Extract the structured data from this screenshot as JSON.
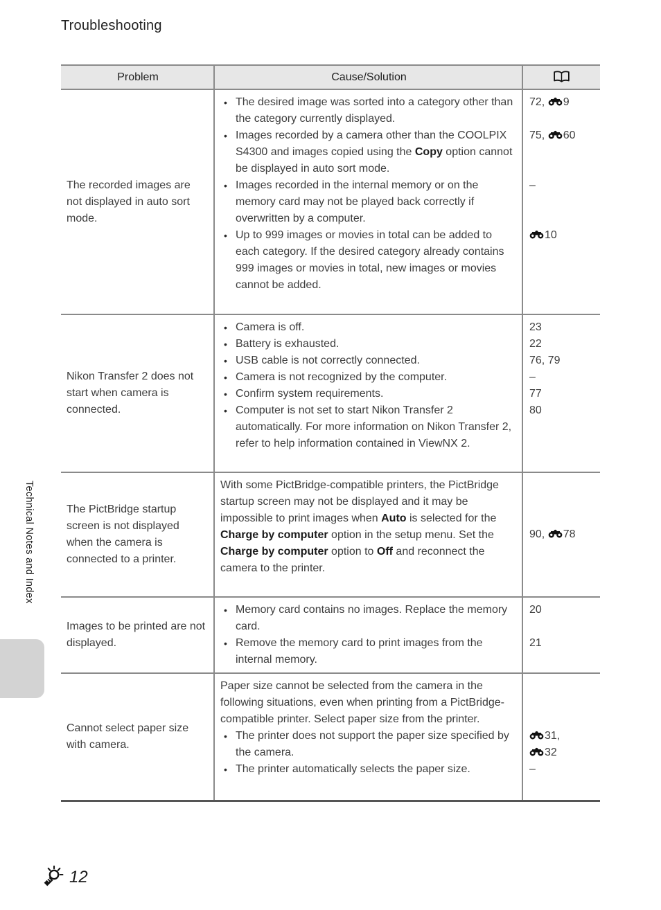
{
  "page": {
    "title": "Troubleshooting",
    "sidebar_label": "Technical Notes and Index",
    "footer_page_number": "12",
    "footer_icon": "torch-icon",
    "colors": {
      "header_bg": "#e7e7e7",
      "border": "#8a8a8a",
      "side_tab": "#d3d3d3"
    }
  },
  "table": {
    "headers": {
      "problem": "Problem",
      "cause": "Cause/Solution",
      "ref_icon": "open-book-icon"
    },
    "ref_symbol_icon": "binoculars-icon",
    "rows": [
      {
        "problem": "The recorded images are not displayed in auto sort mode.",
        "items": [
          {
            "bullet": true,
            "segments": [
              {
                "t": "The desired image was sorted into a category other than the category currently displayed."
              }
            ],
            "refs": [
              "72, [E]9"
            ]
          },
          {
            "bullet": true,
            "segments": [
              {
                "t": "Images recorded by a camera other than the COOLPIX S4300 and images copied using the "
              },
              {
                "t": "Copy",
                "b": true
              },
              {
                "t": " option cannot be displayed in auto sort mode."
              }
            ],
            "refs": [
              "75, [E]60"
            ]
          },
          {
            "bullet": true,
            "segments": [
              {
                "t": "Images recorded in the internal memory or on the memory card may not be played back correctly if overwritten by a computer."
              }
            ],
            "refs": [
              "–"
            ]
          },
          {
            "bullet": true,
            "segments": [
              {
                "t": "Up to 999 images or movies in total can be added to each category. If the desired category already contains 999 images or movies in total, new images or movies cannot be added."
              }
            ],
            "refs": [
              "[E]10"
            ]
          }
        ]
      },
      {
        "problem": "Nikon Transfer 2 does not start when camera is connected.",
        "items": [
          {
            "bullet": true,
            "segments": [
              {
                "t": "Camera is off."
              }
            ],
            "refs": [
              "23"
            ]
          },
          {
            "bullet": true,
            "segments": [
              {
                "t": "Battery is exhausted."
              }
            ],
            "refs": [
              "22"
            ]
          },
          {
            "bullet": true,
            "segments": [
              {
                "t": "USB cable is not correctly connected."
              }
            ],
            "refs": [
              "76, 79"
            ]
          },
          {
            "bullet": true,
            "segments": [
              {
                "t": "Camera is not recognized by the computer."
              }
            ],
            "refs": [
              "–"
            ]
          },
          {
            "bullet": true,
            "segments": [
              {
                "t": "Confirm system requirements."
              }
            ],
            "refs": [
              "77"
            ]
          },
          {
            "bullet": true,
            "segments": [
              {
                "t": "Computer is not set to start Nikon Transfer 2 automatically. For more information on Nikon Transfer 2, refer to help information contained in ViewNX 2."
              }
            ],
            "refs": [
              "80"
            ]
          }
        ]
      },
      {
        "problem": "The PictBridge startup screen is not displayed when the camera is connected to a printer.",
        "center_ref": true,
        "items": [
          {
            "bullet": false,
            "segments": [
              {
                "t": "With some PictBridge-compatible printers, the PictBridge startup screen may not be displayed and it may be impossible to print images when "
              },
              {
                "t": "Auto",
                "b": true
              },
              {
                "t": " is selected for the "
              },
              {
                "t": "Charge by computer",
                "b": true
              },
              {
                "t": " option in the setup menu. Set the "
              },
              {
                "t": "Charge by computer",
                "b": true
              },
              {
                "t": " option to "
              },
              {
                "t": "Off",
                "b": true
              },
              {
                "t": " and reconnect the camera to the printer."
              }
            ],
            "refs": [
              "90, [E]78"
            ]
          }
        ]
      },
      {
        "problem": "Images to be printed are not displayed.",
        "items": [
          {
            "bullet": true,
            "segments": [
              {
                "t": "Memory card contains no images. Replace the memory card."
              }
            ],
            "refs": [
              "20"
            ]
          },
          {
            "bullet": true,
            "segments": [
              {
                "t": "Remove the memory card to print images from the internal memory."
              }
            ],
            "refs": [
              "21"
            ]
          }
        ]
      },
      {
        "problem": "Cannot select paper size with camera.",
        "items": [
          {
            "bullet": false,
            "segments": [
              {
                "t": "Paper size cannot be selected from the camera in the following situations, even when printing from a PictBridge-compatible printer. Select paper size from the printer."
              }
            ],
            "refs": []
          },
          {
            "bullet": true,
            "segments": [
              {
                "t": "The printer does not support the paper size specified by the camera."
              }
            ],
            "refs": [
              "[E]31,",
              "[E]32"
            ]
          },
          {
            "bullet": true,
            "segments": [
              {
                "t": "The printer automatically selects the paper size."
              }
            ],
            "refs": [
              "–"
            ]
          }
        ]
      }
    ]
  }
}
